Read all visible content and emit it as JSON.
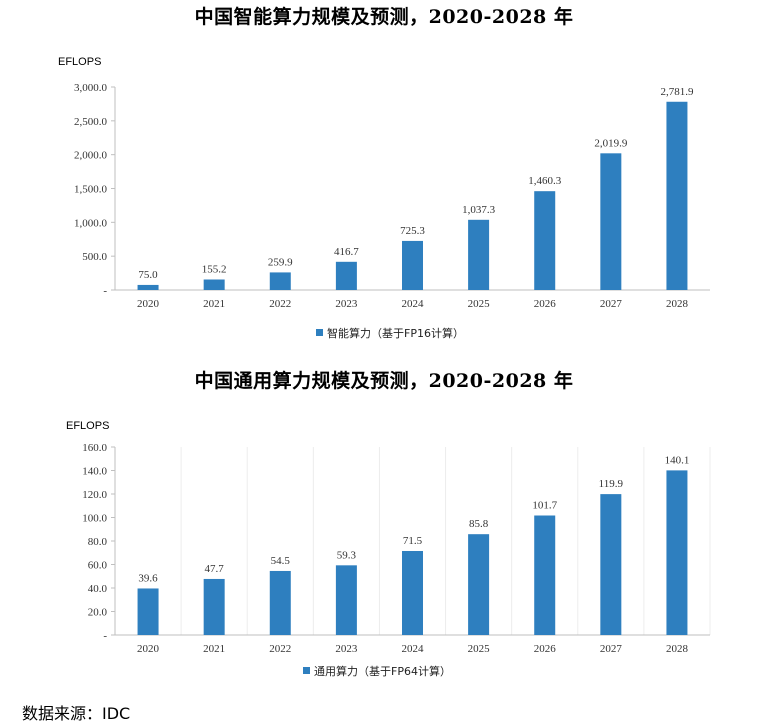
{
  "source_note": "数据来源：IDC",
  "chart_data": [
    {
      "type": "bar",
      "title": "中国智能算力规模及预测，2020-2028 年",
      "unit_label": "EFLOPS",
      "categories": [
        "2020",
        "2021",
        "2022",
        "2023",
        "2024",
        "2025",
        "2026",
        "2027",
        "2028"
      ],
      "series": [
        {
          "name": "智能算力（基于FP16计算）",
          "values": [
            75.0,
            155.2,
            259.9,
            416.7,
            725.3,
            1037.3,
            1460.3,
            2019.9,
            2781.9
          ],
          "labels": [
            "75.0",
            "155.2",
            "259.9",
            "416.7",
            "725.3",
            "1,037.3",
            "1,460.3",
            "2,019.9",
            "2,781.9"
          ]
        }
      ],
      "ylim": [
        0,
        3000
      ],
      "yticks": [
        0,
        500,
        1000,
        1500,
        2000,
        2500,
        3000
      ],
      "ytick_labels": [
        "-",
        "500.0",
        "1,000.0",
        "1,500.0",
        "2,000.0",
        "2,500.0",
        "3,000.0"
      ],
      "grid": false,
      "legend_position": "bottom",
      "color": "#2e7fbf"
    },
    {
      "type": "bar",
      "title": "中国通用算力规模及预测，2020-2028 年",
      "unit_label": "EFLOPS",
      "categories": [
        "2020",
        "2021",
        "2022",
        "2023",
        "2024",
        "2025",
        "2026",
        "2027",
        "2028"
      ],
      "series": [
        {
          "name": "通用算力（基于FP64计算）",
          "values": [
            39.6,
            47.7,
            54.5,
            59.3,
            71.5,
            85.8,
            101.7,
            119.9,
            140.1
          ],
          "labels": [
            "39.6",
            "47.7",
            "54.5",
            "59.3",
            "71.5",
            "85.8",
            "101.7",
            "119.9",
            "140.1"
          ]
        }
      ],
      "ylim": [
        0,
        160
      ],
      "yticks": [
        0,
        20,
        40,
        60,
        80,
        100,
        120,
        140,
        160
      ],
      "ytick_labels": [
        "-",
        "20.0",
        "40.0",
        "60.0",
        "80.0",
        "100.0",
        "120.0",
        "140.0",
        "160.0"
      ],
      "grid": true,
      "legend_position": "bottom",
      "color": "#2e7fbf"
    }
  ]
}
